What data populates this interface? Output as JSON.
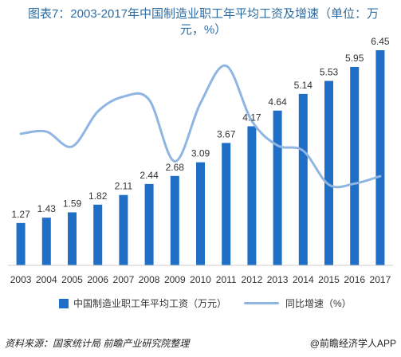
{
  "title": "图表7：2003-2017年中国制造业职工年平均工资及增速（单位：万元，%）",
  "colors": {
    "bar": "#1f6fc6",
    "line": "#8fb5e2",
    "text": "#333333",
    "title": "#2e6da4"
  },
  "chart_data": {
    "type": "bar",
    "categories": [
      "2003",
      "2004",
      "2005",
      "2006",
      "2007",
      "2008",
      "2009",
      "2010",
      "2011",
      "2012",
      "2013",
      "2014",
      "2015",
      "2016",
      "2017"
    ],
    "series": [
      {
        "name": "中国制造业职工年平均工资（万元）",
        "type": "bar",
        "values": [
          1.27,
          1.43,
          1.59,
          1.82,
          2.11,
          2.44,
          2.68,
          3.09,
          3.67,
          4.17,
          4.64,
          5.14,
          5.53,
          5.95,
          6.45
        ]
      },
      {
        "name": "同比增速（%）",
        "type": "line",
        "values": [
          12.4,
          12.6,
          11.2,
          14.5,
          15.9,
          15.6,
          9.8,
          15.3,
          18.8,
          13.6,
          11.3,
          10.8,
          7.6,
          7.7,
          8.4
        ]
      }
    ],
    "ylim_bar": [
      0,
      7
    ],
    "ylim_line": [
      0,
      22
    ],
    "legend_position": "bottom",
    "grid": false,
    "data_labels": true
  },
  "footer": {
    "source": "资料来源：国家统计局 前瞻产业研究院整理",
    "brand": "@前瞻经济学人APP"
  }
}
